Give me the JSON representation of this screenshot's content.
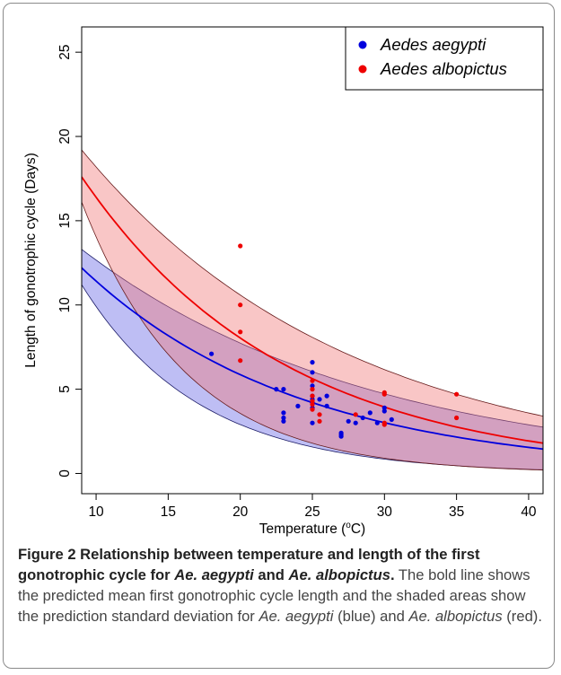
{
  "chart_data": {
    "type": "scatter",
    "xlabel_prefix": "Temperature (",
    "xlabel_sup": "o",
    "xlabel_suffix": "C)",
    "ylabel": "Length of gonotrophic cycle (Days)",
    "xlim": [
      9,
      41
    ],
    "ylim": [
      -1.2,
      26.5
    ],
    "xticks": [
      10,
      15,
      20,
      25,
      30,
      35,
      40
    ],
    "yticks": [
      0,
      5,
      10,
      15,
      20,
      25
    ],
    "grid": false,
    "legend_position": "top-right",
    "series": [
      {
        "name": "Aedes aegypti",
        "color": "#0000dd",
        "band_fill": "rgba(110,110,230,0.45)",
        "band_stroke": "#1a1a66",
        "points": [
          [
            18,
            7.1
          ],
          [
            22.5,
            5.0
          ],
          [
            23,
            5.0
          ],
          [
            23,
            3.6
          ],
          [
            23,
            3.3
          ],
          [
            23,
            3.1
          ],
          [
            24,
            4.0
          ],
          [
            25,
            6.6
          ],
          [
            25,
            6.0
          ],
          [
            25,
            5.2
          ],
          [
            25,
            4.6
          ],
          [
            25,
            4.4
          ],
          [
            25,
            4.2
          ],
          [
            25,
            3.9
          ],
          [
            25,
            3.0
          ],
          [
            25.5,
            4.4
          ],
          [
            26,
            4.6
          ],
          [
            26,
            4.0
          ],
          [
            27,
            2.4
          ],
          [
            27,
            2.3
          ],
          [
            27,
            2.2
          ],
          [
            27.5,
            3.1
          ],
          [
            28,
            3.0
          ],
          [
            28.5,
            3.3
          ],
          [
            29,
            3.6
          ],
          [
            29.5,
            3.0
          ],
          [
            30,
            3.9
          ],
          [
            30,
            3.7
          ],
          [
            30.5,
            3.2
          ]
        ],
        "mean_curve": {
          "x": [
            9,
            41
          ],
          "y": [
            12.2,
            1.45
          ]
        },
        "band_upper": {
          "x": [
            9,
            41
          ],
          "y": [
            13.3,
            2.75
          ]
        },
        "band_lower": {
          "x": [
            9,
            41
          ],
          "y": [
            11.2,
            0.22
          ]
        }
      },
      {
        "name": "Aedes albopictus",
        "color": "#ee0000",
        "band_fill": "rgba(240,120,120,0.42)",
        "band_stroke": "#661a1a",
        "points": [
          [
            20,
            13.5
          ],
          [
            20,
            10.0
          ],
          [
            20,
            8.4
          ],
          [
            20,
            6.7
          ],
          [
            25,
            5.5
          ],
          [
            25,
            5.0
          ],
          [
            25,
            4.6
          ],
          [
            25,
            4.3
          ],
          [
            25,
            4.1
          ],
          [
            25,
            3.8
          ],
          [
            25.5,
            3.5
          ],
          [
            25.5,
            3.1
          ],
          [
            28,
            3.5
          ],
          [
            30,
            4.8
          ],
          [
            30,
            4.7
          ],
          [
            30,
            3.0
          ],
          [
            30,
            2.9
          ],
          [
            35,
            4.7
          ],
          [
            35,
            3.3
          ]
        ],
        "mean_curve": {
          "x": [
            9,
            41
          ],
          "y": [
            17.6,
            1.8
          ]
        },
        "band_upper": {
          "x": [
            9,
            41
          ],
          "y": [
            19.2,
            3.4
          ]
        },
        "band_lower": {
          "x": [
            9,
            41
          ],
          "y": [
            16.1,
            0.2
          ]
        }
      }
    ]
  },
  "caption": {
    "figure_label": "Figure 2 Relationship between temperature and length of the first gonotrophic cycle for ",
    "species1": "Ae. aegypti",
    "and": " and ",
    "species2": "Ae. albopictus",
    "period": ".",
    "body1": " The bold line shows the predicted mean first gonotrophic cycle length and the shaded areas show the prediction standard deviation for ",
    "species1_short": "Ae. aegypti",
    "body2": " (blue) and ",
    "species2_short": "Ae. albopictus",
    "body3": " (red)."
  }
}
